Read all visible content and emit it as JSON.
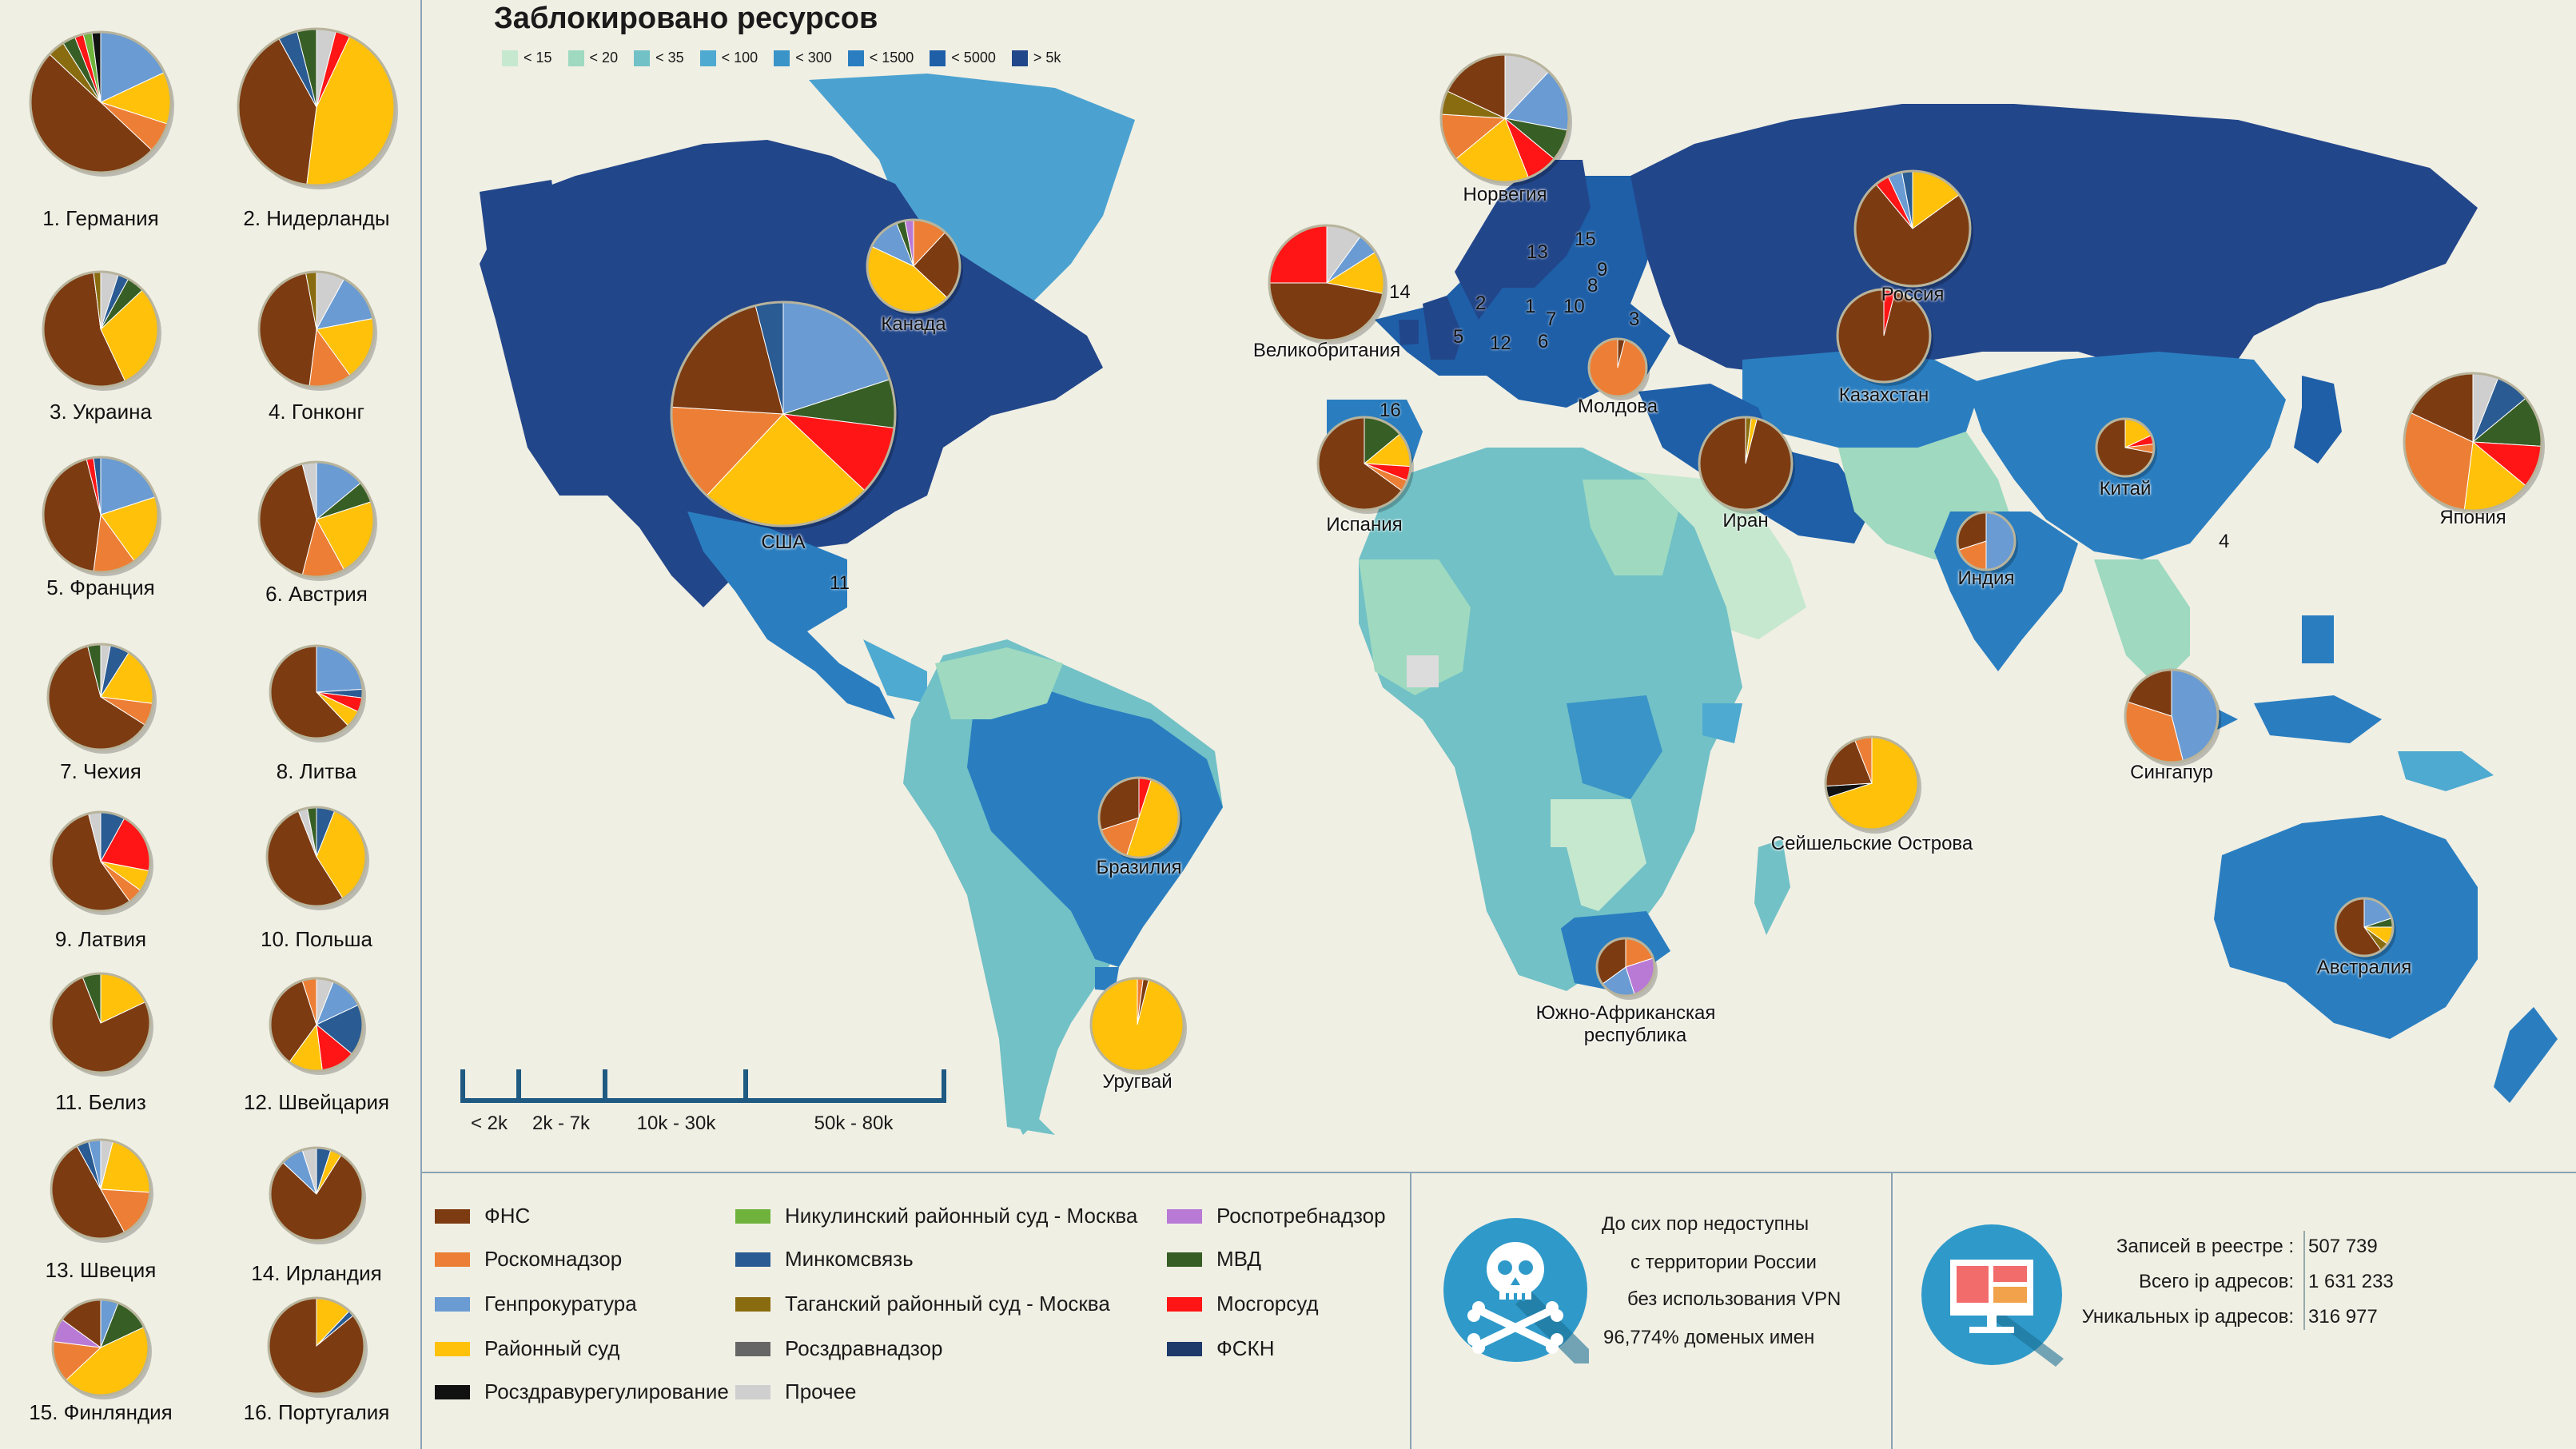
{
  "title": "Заблокировано ресурсов",
  "bins": [
    {
      "label": "< 15",
      "color": "#c6e8cf"
    },
    {
      "label": "< 20",
      "color": "#9ed9c0"
    },
    {
      "label": "< 35",
      "color": "#71c1c6"
    },
    {
      "label": "< 100",
      "color": "#4eaad0"
    },
    {
      "label": "< 300",
      "color": "#3b94c8"
    },
    {
      "label": "< 1500",
      "color": "#2a7ec0"
    },
    {
      "label": "< 5000",
      "color": "#1e5fa8"
    },
    {
      "label": "> 5k",
      "color": "#22468a"
    }
  ],
  "legend": [
    {
      "label": "ФНС",
      "color": "#7d3b12"
    },
    {
      "label": "Роскомнадзор",
      "color": "#ec7f35"
    },
    {
      "label": "Генпрокуратура",
      "color": "#6a9bd3"
    },
    {
      "label": "Районный суд",
      "color": "#ffc10a"
    },
    {
      "label": "Росздравурегулирование",
      "color": "#111111"
    },
    {
      "label": "Никулинский районный суд - Москва",
      "color": "#6fb33d"
    },
    {
      "label": "Минкомсвязь",
      "color": "#2a5b92"
    },
    {
      "label": "Таганский районный суд - Москва",
      "color": "#8a6c10"
    },
    {
      "label": "Росздравнадзор",
      "color": "#666666"
    },
    {
      "label": "Прочее",
      "color": "#cfcfcf"
    },
    {
      "label": "Роспотребнадзор",
      "color": "#b97ad6"
    },
    {
      "label": "МВД",
      "color": "#375e24"
    },
    {
      "label": "Мосгорсуд",
      "color": "#ff1515"
    },
    {
      "label": "ФСКН",
      "color": "#1d3a6b"
    }
  ],
  "scale_labels": [
    "< 2k",
    "2k - 7k",
    "10k - 30k",
    "50k - 80k"
  ],
  "info": {
    "lines": [
      "До сих пор недоступны",
      "с территории России",
      "без использования VPN",
      "96,774% доменых имен"
    ],
    "skull_icon": "skull-crossbones-icon"
  },
  "stats": [
    {
      "label": "Записей в реестре :",
      "value": "507 739"
    },
    {
      "label": "Всего ip адресов:",
      "value": "1 631 233"
    },
    {
      "label": "Уникальных ip адресов:",
      "value": "316 977"
    }
  ],
  "monitor_icon": "computer-monitor-icon",
  "side_countries": [
    {
      "label": "1. Германия",
      "slices": [
        0.01,
        0.0,
        0.05,
        0.02,
        0.02,
        0.22,
        0.1,
        0.1,
        0.47
      ],
      "order": [
        "red",
        "darkblue",
        "olive",
        "mvd",
        "black",
        "genpro",
        "court",
        "rkn",
        "fns"
      ]
    },
    {
      "label": "2. Нидерланды"
    },
    {
      "label": "3. Украина"
    },
    {
      "label": "4. Гонконг"
    },
    {
      "label": "5. Франция"
    },
    {
      "label": "6. Австрия"
    },
    {
      "label": "7. Чехия"
    },
    {
      "label": "8. Литва"
    },
    {
      "label": "9. Латвия"
    },
    {
      "label": "10. Польша"
    },
    {
      "label": "11. Белиз"
    },
    {
      "label": "12. Швейцария"
    },
    {
      "label": "13. Швеция"
    },
    {
      "label": "14. Ирландия"
    },
    {
      "label": "15. Финляндия"
    },
    {
      "label": "16. Португалия"
    }
  ],
  "map_labels": [
    "Канада",
    "США",
    "Норвегия",
    "Великобритания",
    "Россия",
    "Казахстан",
    "Молдова",
    "Испания",
    "Иран",
    "Китай",
    "Япония",
    "Индия",
    "Сингапур",
    "Бразилия",
    "Уругвай",
    "Сейшельские Острова",
    "Австралия",
    "Южно-Африканская",
    "республика"
  ],
  "map_numbers": [
    "14",
    "2",
    "1",
    "7",
    "3",
    "5",
    "12",
    "6",
    "10",
    "8",
    "9",
    "13",
    "15",
    "16",
    "11",
    "4"
  ]
}
